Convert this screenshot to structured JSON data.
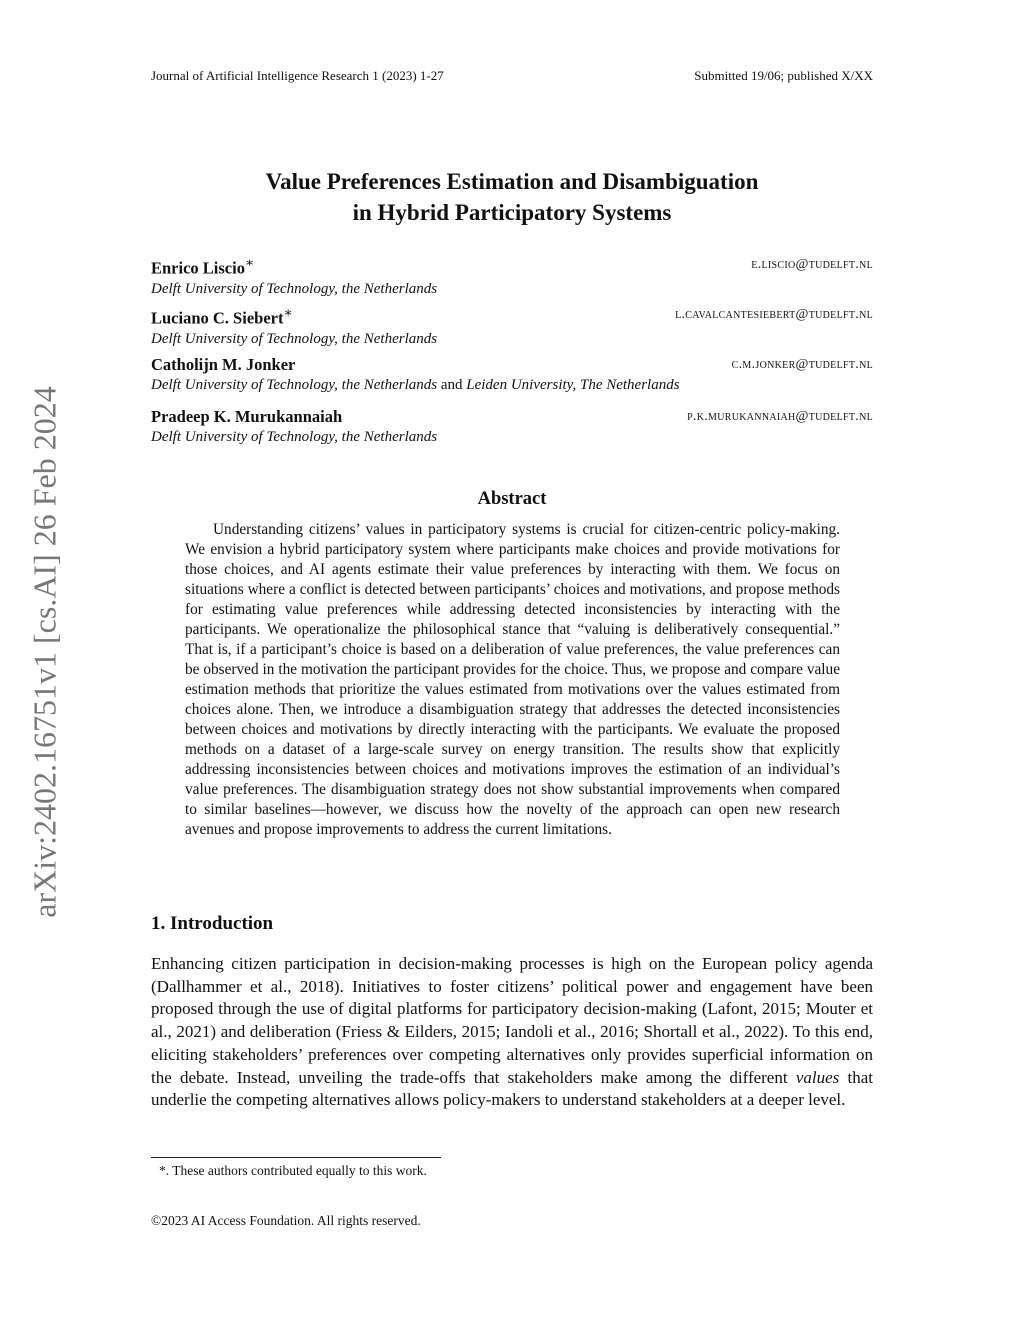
{
  "header": {
    "left": "Journal of Artificial Intelligence Research 1 (2023) 1-27",
    "right": "Submitted 19/06; published X/XX"
  },
  "arxiv_stamp": "arXiv:2402.16751v1  [cs.AI]  26 Feb 2024",
  "title": {
    "line1": "Value Preferences Estimation and Disambiguation",
    "line2": "in Hybrid Participatory Systems"
  },
  "authors": [
    {
      "name": "Enrico Liscio",
      "mark": "∗",
      "email": "e.liscio@tudelft.nl",
      "affiliation": "Delft University of Technology, the Netherlands"
    },
    {
      "name": "Luciano C. Siebert",
      "mark": "∗",
      "email": "l.cavalcantesiebert@tudelft.nl",
      "affiliation": "Delft University of Technology, the Netherlands"
    },
    {
      "name": "Catholijn M. Jonker",
      "mark": "",
      "email": "c.m.jonker@tudelft.nl",
      "affiliation": "Delft University of Technology, the Netherlands",
      "and": "and",
      "affiliation2": "Leiden University, The Netherlands"
    },
    {
      "name": "Pradeep K. Murukannaiah",
      "mark": "",
      "email": "p.k.murukannaiah@tudelft.nl",
      "affiliation": "Delft University of Technology, the Netherlands"
    }
  ],
  "abstract": {
    "heading": "Abstract",
    "text": "Understanding citizens’ values in participatory systems is crucial for citizen-centric policy-making. We envision a hybrid participatory system where participants make choices and provide motivations for those choices, and AI agents estimate their value preferences by interacting with them. We focus on situations where a conflict is detected between participants’ choices and motivations, and propose methods for estimating value preferences while addressing detected inconsistencies by interacting with the participants. We operationalize the philosophical stance that “valuing is deliberatively consequential.” That is, if a participant’s choice is based on a deliberation of value preferences, the value preferences can be observed in the motivation the participant provides for the choice. Thus, we propose and compare value estimation methods that prioritize the values estimated from motivations over the values estimated from choices alone. Then, we introduce a disambiguation strategy that addresses the detected inconsistencies between choices and motivations by directly interacting with the participants. We evaluate the proposed methods on a dataset of a large-scale survey on energy transition. The results show that explicitly addressing inconsistencies between choices and motivations improves the estimation of an individual’s value preferences. The disambiguation strategy does not show substantial improvements when compared to similar baselines—however, we discuss how the novelty of the approach can open new research avenues and propose improvements to address the current limitations."
  },
  "section": {
    "heading": "1. Introduction",
    "p1": "Enhancing citizen participation in decision-making processes is high on the European policy agenda (Dallhammer et al., 2018). Initiatives to foster citizens’ political power and engagement have been proposed through the use of digital platforms for participatory decision-making (Lafont, 2015; Mouter et al., 2021) and deliberation (Friess & Eilders, 2015; Iandoli et al., 2016; Shortall et al., 2022). To this end, eliciting stakeholders’ preferences over competing alternatives only provides superficial information on the debate. Instead, unveiling the trade-offs that stakeholders make among the different ",
    "em": "values",
    "p2": " that underlie the competing alternatives allows policy-makers to understand stakeholders at a deeper level."
  },
  "footnote": "*. These authors contributed equally to this work.",
  "copyright": "©2023 AI Access Foundation. All rights reserved."
}
